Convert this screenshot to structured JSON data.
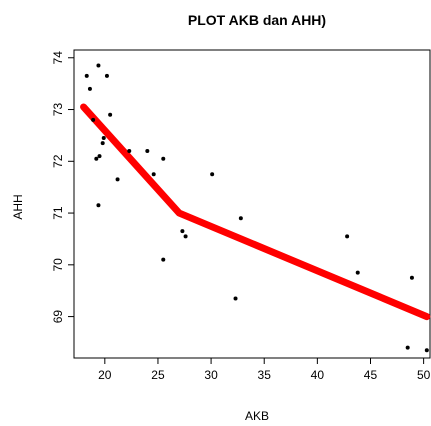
{
  "chart_data": {
    "type": "scatter",
    "title": "PLOT AKB dan AHH)",
    "xlabel": "AKB",
    "ylabel": "AHH",
    "xlim": [
      17.1,
      50.6
    ],
    "ylim": [
      68.2,
      74.15
    ],
    "x_ticks": [
      20,
      25,
      30,
      35,
      40,
      45,
      50
    ],
    "y_ticks": [
      69,
      70,
      71,
      72,
      73,
      74
    ],
    "grid": false,
    "colors": {
      "points": "#000000",
      "fit_line": "#ff0000"
    },
    "points": [
      {
        "x": 18.3,
        "y": 73.65
      },
      {
        "x": 18.6,
        "y": 73.4
      },
      {
        "x": 19.4,
        "y": 73.85
      },
      {
        "x": 20.2,
        "y": 73.65
      },
      {
        "x": 18.9,
        "y": 72.8
      },
      {
        "x": 20.5,
        "y": 72.9
      },
      {
        "x": 19.9,
        "y": 72.45
      },
      {
        "x": 19.8,
        "y": 72.35
      },
      {
        "x": 19.2,
        "y": 72.05
      },
      {
        "x": 19.5,
        "y": 72.1
      },
      {
        "x": 22.3,
        "y": 72.2
      },
      {
        "x": 24.0,
        "y": 72.2
      },
      {
        "x": 25.5,
        "y": 72.05
      },
      {
        "x": 24.6,
        "y": 71.75
      },
      {
        "x": 21.2,
        "y": 71.65
      },
      {
        "x": 19.4,
        "y": 71.15
      },
      {
        "x": 30.1,
        "y": 71.75
      },
      {
        "x": 32.8,
        "y": 70.9
      },
      {
        "x": 27.3,
        "y": 70.65
      },
      {
        "x": 27.6,
        "y": 70.55
      },
      {
        "x": 25.5,
        "y": 70.1
      },
      {
        "x": 32.3,
        "y": 69.35
      },
      {
        "x": 42.8,
        "y": 70.55
      },
      {
        "x": 43.8,
        "y": 69.85
      },
      {
        "x": 48.9,
        "y": 69.75
      },
      {
        "x": 48.5,
        "y": 68.4
      },
      {
        "x": 50.3,
        "y": 68.35
      }
    ],
    "fit_line": [
      {
        "x": 18.0,
        "y": 73.05
      },
      {
        "x": 27.0,
        "y": 71.0
      },
      {
        "x": 50.3,
        "y": 69.0
      }
    ]
  }
}
